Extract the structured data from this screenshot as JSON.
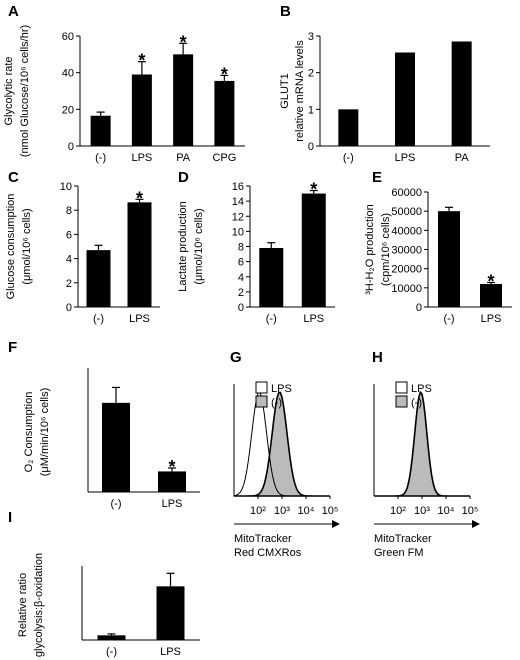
{
  "chart_data": [
    {
      "panel": "A",
      "type": "bar",
      "categories": [
        "(-)",
        "LPS",
        "PA",
        "CPG"
      ],
      "values": [
        16.5,
        39,
        50,
        35.5
      ],
      "errors": [
        2,
        7,
        6,
        3
      ],
      "significance": [
        "",
        "*",
        "*",
        "*"
      ],
      "ylabel": "Glycolytic rate (nmol Glucose/10⁶ cells/hr)",
      "ylabel_lines": [
        "Glycolytic rate",
        "(nmol Glucose/10⁶ cells/hr)"
      ],
      "ylim": [
        0,
        60
      ],
      "yticks": [
        "0",
        "20",
        "40",
        "60"
      ],
      "color": "#000000"
    },
    {
      "panel": "B",
      "type": "bar",
      "categories": [
        "(-)",
        "LPS",
        "PA"
      ],
      "values": [
        1,
        2.55,
        2.85
      ],
      "errors": [
        0,
        0,
        0
      ],
      "significance": [
        "",
        "",
        ""
      ],
      "ylabel": "GLUT1 relative mRNA levels",
      "ylabel_lines": [
        "GLUT1",
        "relative mRNA levels"
      ],
      "ylim": [
        0,
        3
      ],
      "yticks": [
        "0",
        "1",
        "2",
        "3"
      ],
      "color": "#000000"
    },
    {
      "panel": "C",
      "type": "bar",
      "categories": [
        "(-)",
        "LPS"
      ],
      "values": [
        4.7,
        8.65
      ],
      "errors": [
        0.4,
        0.25
      ],
      "significance": [
        "",
        "*"
      ],
      "ylabel": "Glucose consumption (μmol/10⁶ cells)",
      "ylabel_lines": [
        "Glucose consumption",
        "(μmol/10⁶ cells)"
      ],
      "ylim": [
        0,
        10
      ],
      "yticks": [
        "0",
        "2",
        "4",
        "6",
        "8",
        "10"
      ],
      "color": "#000000"
    },
    {
      "panel": "D",
      "type": "bar",
      "categories": [
        "(-)",
        "LPS"
      ],
      "values": [
        7.8,
        15
      ],
      "errors": [
        0.7,
        0.4
      ],
      "significance": [
        "",
        "*"
      ],
      "ylabel": "Lactate production (μmol/10⁶ cells)",
      "ylabel_lines": [
        "Lactate production",
        "(μmol/10⁶ cells)"
      ],
      "ylim": [
        0,
        16
      ],
      "yticks": [
        "0",
        "2",
        "4",
        "6",
        "8",
        "10",
        "12",
        "14",
        "16"
      ],
      "color": "#000000"
    },
    {
      "panel": "E",
      "type": "bar",
      "categories": [
        "(-)",
        "LPS"
      ],
      "values": [
        50000,
        12000
      ],
      "errors": [
        2000,
        800
      ],
      "significance": [
        "",
        "*"
      ],
      "ylabel": "³H-H₂O production (cpm/10⁶ cells)",
      "ylabel_lines": [
        "³H-H₂O production",
        "(cpm/10⁶ cells)"
      ],
      "ylim": [
        0,
        60000
      ],
      "yticks": [
        "0",
        "10000",
        "20000",
        "30000",
        "40000",
        "50000",
        "60000"
      ],
      "color": "#000000"
    },
    {
      "panel": "F",
      "type": "bar",
      "categories": [
        "(-)",
        "LPS"
      ],
      "values": [
        0.26,
        0.06
      ],
      "errors": [
        0.045,
        0.01
      ],
      "significance": [
        "",
        "*"
      ],
      "ylabel": "O₂ Consumption (μM/min/10⁶ cells)",
      "ylabel_lines": [
        "O₂ Consumption",
        "(μM/min/10⁶ cells)"
      ],
      "ylim": [
        0,
        0.35
      ],
      "yticks": [],
      "color": "#000000"
    },
    {
      "panel": "G",
      "type": "histogram",
      "xlabel": "MitoTracker Red CMXRos",
      "xlabel_lines": [
        "MitoTracker",
        "Red CMXRos"
      ],
      "xticks": [
        "10²",
        "10³",
        "10⁴",
        "10⁵"
      ],
      "legend": [
        "LPS",
        "(-)"
      ],
      "series": [
        {
          "name": "LPS",
          "fill": "#ffffff",
          "peak_log": 2.05,
          "width": 0.55
        },
        {
          "name": "(-)",
          "fill": "#bbbbbb",
          "peak_log": 2.9,
          "width": 0.55
        }
      ]
    },
    {
      "panel": "H",
      "type": "histogram",
      "xlabel": "MitoTracker Green FM",
      "xlabel_lines": [
        "MitoTracker",
        "Green FM"
      ],
      "xticks": [
        "10²",
        "10³",
        "10⁴",
        "10⁵"
      ],
      "legend": [
        "LPS",
        "(-)"
      ],
      "series": [
        {
          "name": "LPS",
          "fill": "#ffffff",
          "peak_log": 2.95,
          "width": 0.45
        },
        {
          "name": "(-)",
          "fill": "#bbbbbb",
          "peak_log": 2.95,
          "width": 0.45
        }
      ]
    },
    {
      "panel": "I",
      "type": "bar",
      "categories": [
        "(-)",
        "LPS"
      ],
      "values": [
        1,
        11.5
      ],
      "errors": [
        0.3,
        2.8
      ],
      "significance": [
        "",
        ""
      ],
      "ylabel": "Relative ratio glycolysis:β-oxidation",
      "ylabel_lines": [
        "Relative ratio",
        "glycolysis:β-oxidation"
      ],
      "ylim": [
        0,
        15
      ],
      "yticks": [],
      "color": "#000000"
    }
  ]
}
